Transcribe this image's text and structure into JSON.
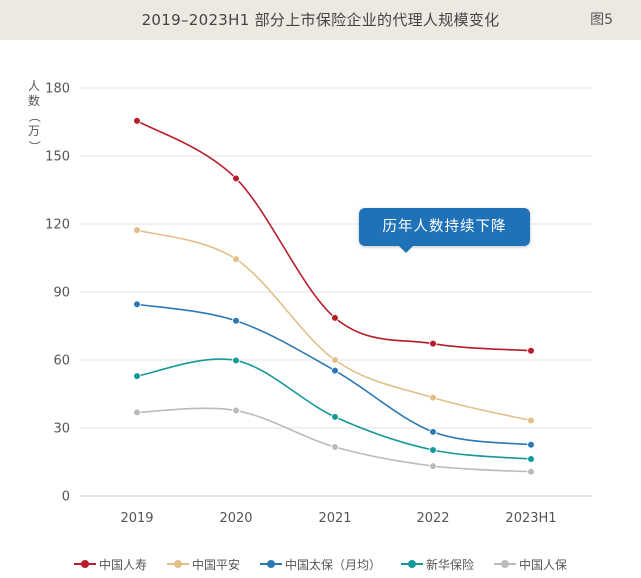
{
  "header": {
    "title": "2019–2023H1 部分上市保险企业的代理人规模变化",
    "figure_number": "图5"
  },
  "chart_data": {
    "type": "line",
    "ylabel_chars": [
      "人",
      "数",
      "（",
      "万",
      "）"
    ],
    "categories": [
      "2019",
      "2020",
      "2021",
      "2022",
      "2023H1"
    ],
    "ylim": [
      0,
      180
    ],
    "yticks": [
      0,
      30,
      60,
      90,
      120,
      150,
      180
    ],
    "grid": true,
    "legend_position": "bottom",
    "annotation": "历年人数持续下降",
    "series": [
      {
        "name": "中国人寿",
        "color": "#b71c2a",
        "values": [
          165.5,
          140.1,
          78.6,
          67.2,
          64.1
        ]
      },
      {
        "name": "中国平安",
        "color": "#e3be88",
        "values": [
          117.3,
          104.5,
          60.0,
          43.4,
          33.3
        ]
      },
      {
        "name": "中国太保（月均）",
        "color": "#2b78b4",
        "values": [
          84.6,
          77.3,
          55.3,
          28.3,
          22.6
        ]
      },
      {
        "name": "新华保险",
        "color": "#14999a",
        "values": [
          52.9,
          59.8,
          34.9,
          20.3,
          16.3
        ]
      },
      {
        "name": "中国人保",
        "color": "#bbbbbb",
        "values": [
          36.9,
          37.7,
          21.6,
          13.2,
          10.7
        ]
      }
    ]
  }
}
